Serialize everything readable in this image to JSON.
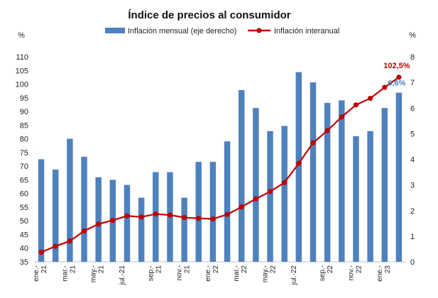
{
  "chart_data": {
    "type": "bar+line",
    "title": "Índice de precios al consumidor",
    "left_axis_unit": "%",
    "right_axis_unit": "%",
    "left_ylim": [
      35,
      110
    ],
    "left_ticks": [
      35,
      40,
      45,
      50,
      55,
      60,
      65,
      70,
      75,
      80,
      85,
      90,
      95,
      100,
      105,
      110
    ],
    "right_ylim": [
      0,
      8
    ],
    "right_ticks": [
      0,
      1,
      2,
      3,
      4,
      5,
      6,
      7,
      8
    ],
    "x_tick_labels": [
      {
        "index": 0,
        "lines": [
          "ene.-",
          "21"
        ]
      },
      {
        "index": 2,
        "lines": [
          "mar.-",
          "21"
        ]
      },
      {
        "index": 4,
        "lines": [
          "may.-",
          "21"
        ]
      },
      {
        "index": 6,
        "lines": [
          "jul.-21"
        ]
      },
      {
        "index": 8,
        "lines": [
          "sep.-",
          "21"
        ]
      },
      {
        "index": 10,
        "lines": [
          "nov.-",
          "21"
        ]
      },
      {
        "index": 12,
        "lines": [
          "ene.-",
          "22"
        ]
      },
      {
        "index": 14,
        "lines": [
          "mar.-",
          "22"
        ]
      },
      {
        "index": 16,
        "lines": [
          "may.-",
          "22"
        ]
      },
      {
        "index": 18,
        "lines": [
          "jul.-22"
        ]
      },
      {
        "index": 20,
        "lines": [
          "sep.-",
          "22"
        ]
      },
      {
        "index": 22,
        "lines": [
          "nov.-",
          "22"
        ]
      },
      {
        "index": 24,
        "lines": [
          "ene.-",
          "23"
        ]
      }
    ],
    "series": [
      {
        "name": "Inflación mensual (eje derecho)",
        "type": "bar",
        "axis": "right",
        "color": "#4f81bd",
        "values": [
          4.0,
          3.6,
          4.8,
          4.1,
          3.3,
          3.2,
          3.0,
          2.5,
          3.5,
          3.5,
          2.5,
          3.9,
          3.9,
          4.7,
          6.7,
          6.0,
          5.1,
          5.3,
          7.4,
          7.0,
          6.2,
          6.3,
          4.9,
          5.1,
          6.0,
          6.6
        ]
      },
      {
        "name": "Inflación interanual",
        "type": "line",
        "axis": "left",
        "color": "#c00000",
        "values": [
          38.5,
          40.7,
          42.6,
          46.3,
          48.8,
          50.2,
          51.8,
          51.4,
          52.5,
          52.1,
          51.2,
          50.9,
          50.7,
          52.3,
          55.1,
          58.0,
          60.7,
          64.0,
          71.0,
          78.5,
          83.0,
          88.0,
          92.4,
          94.8,
          98.8,
          102.5
        ]
      }
    ],
    "annotations": [
      {
        "series": "Inflación interanual",
        "index": 25,
        "text": "102,5%"
      },
      {
        "series": "Inflación mensual (eje derecho)",
        "index": 25,
        "text": "6,6%"
      }
    ]
  }
}
